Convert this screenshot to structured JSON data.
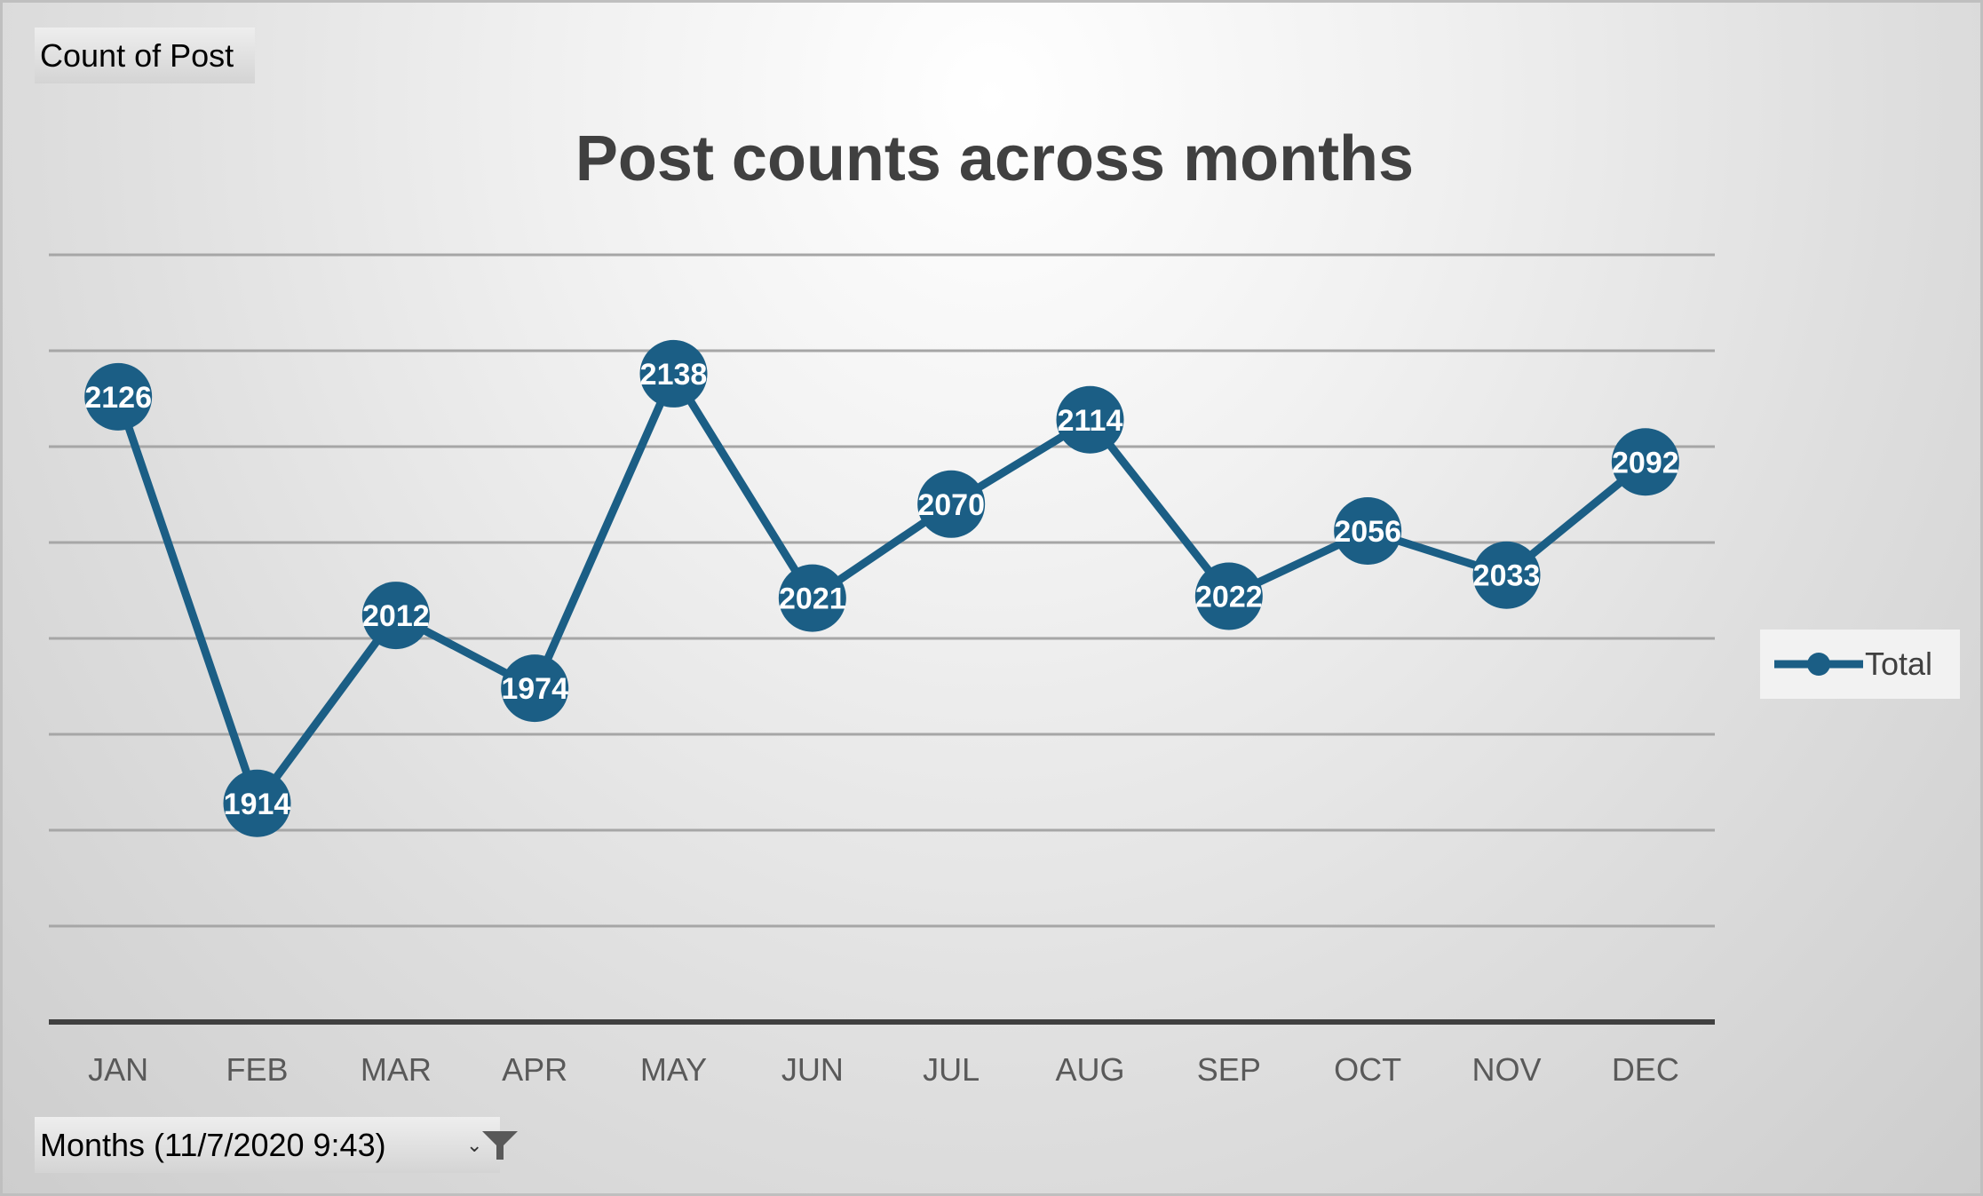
{
  "field_button": {
    "label": "Count of Post"
  },
  "axis_field_button": {
    "label": "Months (11/7/2020  9:43)",
    "dropdown_icon": "dropdown-arrow-icon",
    "filter_icon": "filter-icon"
  },
  "colors": {
    "series": "#1b5e85",
    "title": "#404040",
    "gridline": "#a6a6a6",
    "axis_line": "#404040"
  },
  "chart_data": {
    "type": "line",
    "title": "Post counts across months",
    "xlabel": "",
    "ylabel": "",
    "categories": [
      "JAN",
      "FEB",
      "MAR",
      "APR",
      "MAY",
      "JUN",
      "JUL",
      "AUG",
      "SEP",
      "OCT",
      "NOV",
      "DEC"
    ],
    "series": [
      {
        "name": "Total",
        "values": [
          2126,
          1914,
          2012,
          1974,
          2138,
          2021,
          2070,
          2114,
          2022,
          2056,
          2033,
          2092
        ]
      }
    ],
    "ylim": [
      1800,
      2200
    ],
    "y_gridline_step": 50,
    "y_tick_labels_shown": false,
    "data_labels": true,
    "grid": true,
    "legend": "right"
  }
}
